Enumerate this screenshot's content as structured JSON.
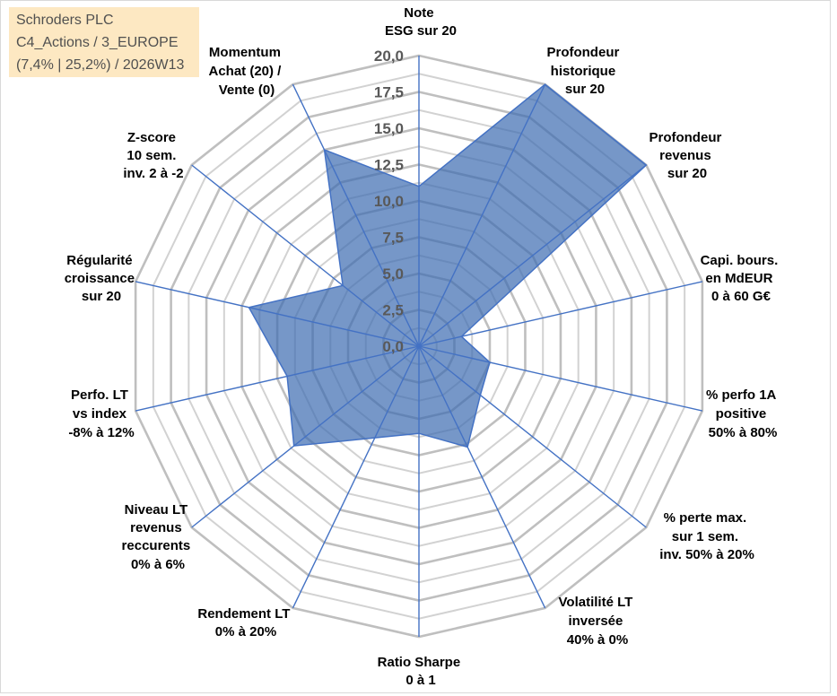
{
  "title_box": {
    "line1": "Schroders PLC",
    "line2": "C4_Actions / 3_EUROPE",
    "line3": "(7,4% | 25,2%) / 2026W13",
    "background": "#fde8c2"
  },
  "chart_data": {
    "type": "radar",
    "categories": [
      [
        "Note",
        "ESG sur 20"
      ],
      [
        "Profondeur",
        "historique",
        "sur 20"
      ],
      [
        "Profondeur",
        "revenus",
        "sur 20"
      ],
      [
        "Capi. bours.",
        "en MdEUR",
        "0 à 60 G€"
      ],
      [
        "% perfo 1A",
        "positive",
        "50% à 80%"
      ],
      [
        "% perte max.",
        "sur 1 sem.",
        "inv. 50% à 20%"
      ],
      [
        "Volatilité LT",
        "inversée",
        "40% à 0%"
      ],
      [
        "Ratio Sharpe",
        "0 à 1"
      ],
      [
        "Rendement LT",
        "0% à 20%"
      ],
      [
        "Niveau LT",
        "revenus",
        "reccurents",
        "0% à 6%"
      ],
      [
        "Perfo. LT",
        "vs index",
        "-8% à 12%"
      ],
      [
        "Régularité",
        "croissance",
        "sur 20"
      ],
      [
        "Z-score",
        "10 sem.",
        "inv. 2 à -2"
      ],
      [
        "Momentum",
        "Achat (20) /",
        "Vente (0)"
      ]
    ],
    "series": [
      {
        "values": [
          11,
          20,
          20,
          3,
          5,
          5.4,
          7.7,
          6,
          7,
          11,
          9.3,
          12,
          6.7,
          15
        ]
      }
    ],
    "rlim": [
      0,
      20
    ],
    "ticks": [
      "0,0",
      "2,5",
      "5,0",
      "7,5",
      "10,0",
      "12,5",
      "15,0",
      "17,5",
      "20,0"
    ],
    "tick_values": [
      0,
      2.5,
      5,
      7.5,
      10,
      12.5,
      15,
      17.5,
      20
    ],
    "minor_step": 1.25,
    "grid": true,
    "colors": {
      "series_fill": "#3c6bb0",
      "series_line": "#4472c4",
      "axis_line": "#4472c4",
      "grid_major": "#bfbfbf",
      "grid_minor": "#d2d2d2",
      "tick_label": "#595959",
      "axis_label": "#000000"
    }
  }
}
